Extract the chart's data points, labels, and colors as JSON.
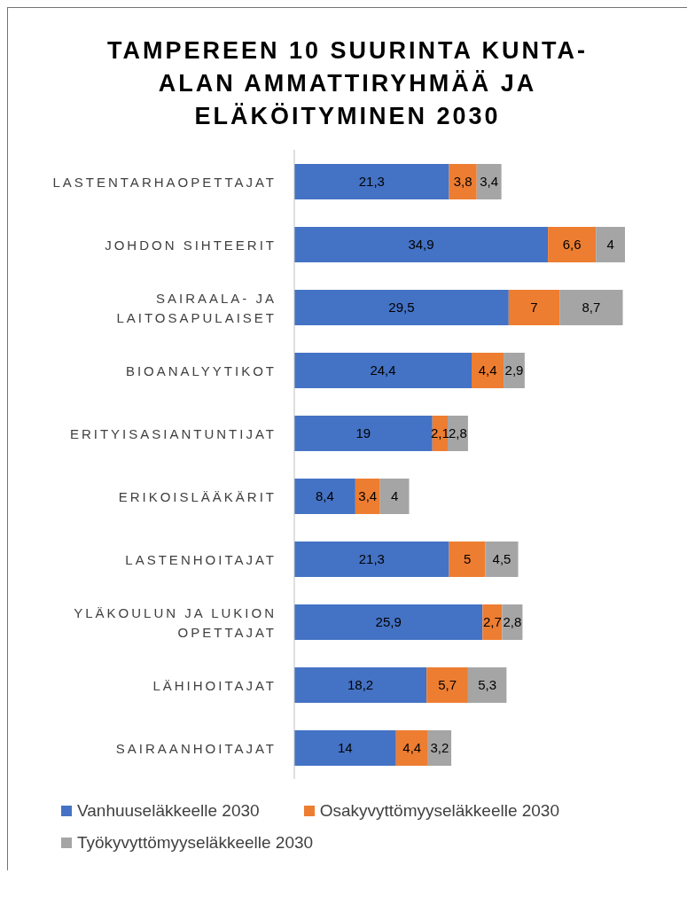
{
  "chart_data": {
    "type": "bar",
    "orientation": "horizontal",
    "stacked": true,
    "tick_labels": false,
    "title": "TAMPEREEN 10 SUURINTA KUNTA-ALAN AMMATTIRYHMÄÄ JA ELÄKÖITYMINEN 2030",
    "legend": "bottom",
    "categories": [
      "LASTENTARHAOPETTAJAT",
      "JOHDON SIHTEERIT",
      "SAIRAALA- JA LAITOSAPULAISET",
      "BIOANALYYTIKOT",
      "ERITYISASIANTUNTIJAT",
      "ERIKOISLÄÄKÄRIT",
      "LASTENHOITAJAT",
      "YLÄKOULUN JA LUKION OPETTAJAT",
      "LÄHIHOITAJAT",
      "SAIRAANHOITAJAT"
    ],
    "series": [
      {
        "name": "Vanhuuseläkkeelle 2030",
        "color": "#4472c4",
        "values": [
          21.3,
          34.9,
          29.5,
          24.4,
          19,
          8.4,
          21.3,
          25.9,
          18.2,
          14
        ],
        "value_labels": [
          "21,3",
          "34,9",
          "29,5",
          "24,4",
          "19",
          "8,4",
          "21,3",
          "25,9",
          "18,2",
          "14"
        ]
      },
      {
        "name": "Osakyvyttömyyseläkkeelle 2030",
        "color": "#ed7d31",
        "values": [
          3.8,
          6.6,
          7,
          4.4,
          2.1,
          3.4,
          5,
          2.7,
          5.7,
          4.4
        ],
        "value_labels": [
          "3,8",
          "6,6",
          "7",
          "4,4",
          "2,1",
          "3,4",
          "5",
          "2,7",
          "5,7",
          "4,4"
        ]
      },
      {
        "name": "Työkyvyttömyyseläkkeelle 2030",
        "color": "#a5a5a5",
        "values": [
          3.4,
          4,
          8.7,
          2.9,
          2.8,
          4,
          4.5,
          2.8,
          5.3,
          3.2
        ],
        "value_labels": [
          "3,4",
          "4",
          "8,7",
          "2,9",
          "2,8",
          "4",
          "4,5",
          "2,8",
          "5,3",
          "3,2"
        ]
      }
    ]
  }
}
